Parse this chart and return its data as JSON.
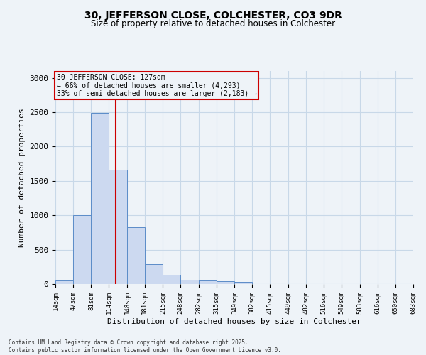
{
  "title": "30, JEFFERSON CLOSE, COLCHESTER, CO3 9DR",
  "subtitle": "Size of property relative to detached houses in Colchester",
  "xlabel": "Distribution of detached houses by size in Colchester",
  "ylabel": "Number of detached properties",
  "property_label": "30 JEFFERSON CLOSE: 127sqm",
  "annotation_line1": "← 66% of detached houses are smaller (4,293)",
  "annotation_line2": "33% of semi-detached houses are larger (2,183) →",
  "footer_line1": "Contains HM Land Registry data © Crown copyright and database right 2025.",
  "footer_line2": "Contains public sector information licensed under the Open Government Licence v3.0.",
  "bin_edges": [
    14,
    47,
    81,
    114,
    148,
    181,
    215,
    248,
    282,
    315,
    349,
    382,
    415,
    449,
    482,
    516,
    549,
    583,
    616,
    650,
    683
  ],
  "bin_counts": [
    50,
    1000,
    2490,
    1660,
    830,
    285,
    130,
    60,
    55,
    45,
    30,
    5,
    0,
    0,
    0,
    0,
    0,
    0,
    0,
    0
  ],
  "bar_color": "#ccd9f0",
  "bar_edge_color": "#5b8cc8",
  "vline_color": "#cc0000",
  "vline_x": 127,
  "annotation_box_color": "#cc0000",
  "grid_color": "#c8d8e8",
  "background_color": "#eef3f8",
  "ylim": [
    0,
    3100
  ],
  "yticks": [
    0,
    500,
    1000,
    1500,
    2000,
    2500,
    3000
  ],
  "xlim_left": 14,
  "xlim_right": 683
}
